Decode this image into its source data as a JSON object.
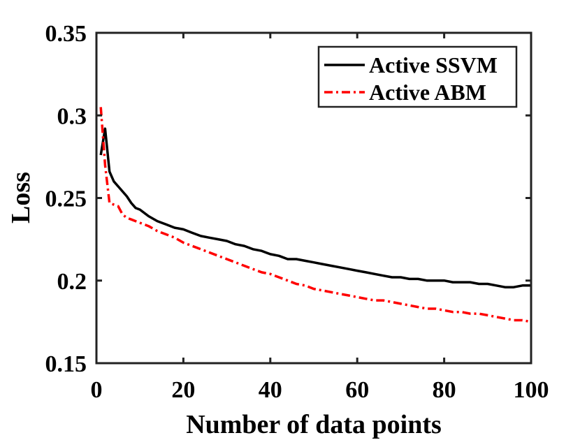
{
  "chart_data": {
    "type": "line",
    "title": "",
    "xlabel": "Number of data points",
    "ylabel": "Loss",
    "xlim": [
      0,
      100
    ],
    "ylim": [
      0.15,
      0.35
    ],
    "xticks": [
      0,
      20,
      40,
      60,
      80,
      100
    ],
    "xtick_labels": [
      "0",
      "20",
      "40",
      "60",
      "80",
      "100"
    ],
    "yticks": [
      0.15,
      0.2,
      0.25,
      0.3,
      0.35
    ],
    "ytick_labels": [
      "0.15",
      "0.2",
      "0.25",
      "0.3",
      "0.35"
    ],
    "grid": false,
    "legend_position": "top-right",
    "series": [
      {
        "name": "Active SSVM",
        "color": "#000000",
        "style": "solid",
        "x": [
          1,
          2,
          3,
          4,
          5,
          6,
          7,
          8,
          9,
          10,
          12,
          14,
          16,
          18,
          20,
          22,
          24,
          26,
          28,
          30,
          32,
          34,
          36,
          38,
          40,
          42,
          44,
          46,
          48,
          50,
          52,
          54,
          56,
          58,
          60,
          62,
          64,
          66,
          68,
          70,
          72,
          74,
          76,
          78,
          80,
          82,
          84,
          86,
          88,
          90,
          92,
          94,
          96,
          98,
          100
        ],
        "values": [
          0.276,
          0.292,
          0.266,
          0.26,
          0.257,
          0.254,
          0.251,
          0.247,
          0.244,
          0.243,
          0.239,
          0.236,
          0.234,
          0.232,
          0.231,
          0.229,
          0.227,
          0.226,
          0.225,
          0.224,
          0.222,
          0.221,
          0.219,
          0.218,
          0.216,
          0.215,
          0.213,
          0.213,
          0.212,
          0.211,
          0.21,
          0.209,
          0.208,
          0.207,
          0.206,
          0.205,
          0.204,
          0.203,
          0.202,
          0.202,
          0.201,
          0.201,
          0.2,
          0.2,
          0.2,
          0.199,
          0.199,
          0.199,
          0.198,
          0.198,
          0.197,
          0.196,
          0.196,
          0.197,
          0.197
        ]
      },
      {
        "name": "Active ABM",
        "color": "#ff0000",
        "style": "dash-dot",
        "x": [
          1,
          2,
          3,
          4,
          5,
          6,
          7,
          8,
          10,
          12,
          14,
          16,
          18,
          20,
          22,
          24,
          26,
          28,
          30,
          32,
          34,
          36,
          38,
          40,
          42,
          44,
          46,
          48,
          50,
          52,
          54,
          56,
          58,
          60,
          62,
          64,
          66,
          68,
          70,
          72,
          74,
          76,
          78,
          80,
          82,
          84,
          86,
          88,
          90,
          92,
          94,
          96,
          98,
          100
        ],
        "values": [
          0.305,
          0.27,
          0.247,
          0.246,
          0.245,
          0.24,
          0.238,
          0.237,
          0.235,
          0.233,
          0.23,
          0.228,
          0.226,
          0.223,
          0.221,
          0.219,
          0.217,
          0.215,
          0.213,
          0.211,
          0.209,
          0.207,
          0.205,
          0.204,
          0.202,
          0.2,
          0.198,
          0.197,
          0.195,
          0.194,
          0.193,
          0.192,
          0.191,
          0.19,
          0.189,
          0.188,
          0.188,
          0.187,
          0.186,
          0.185,
          0.184,
          0.183,
          0.183,
          0.182,
          0.181,
          0.181,
          0.18,
          0.18,
          0.179,
          0.178,
          0.177,
          0.176,
          0.176,
          0.175
        ]
      }
    ]
  }
}
